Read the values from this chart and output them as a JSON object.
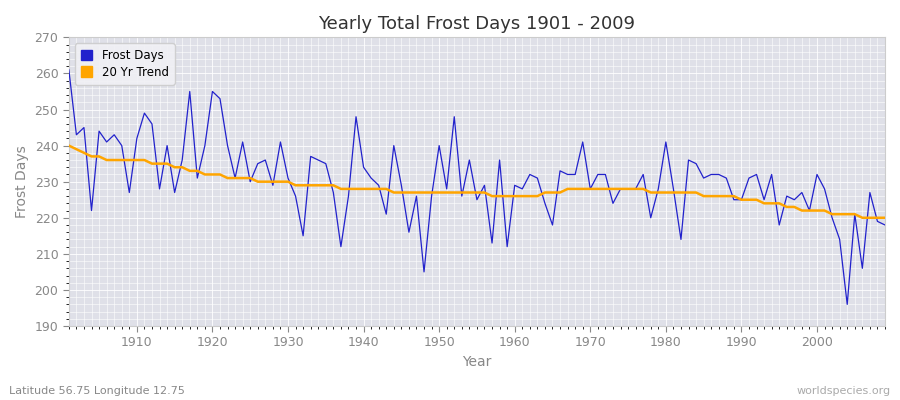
{
  "title": "Yearly Total Frost Days 1901 - 2009",
  "xlabel": "Year",
  "ylabel": "Frost Days",
  "bottom_left_text": "Latitude 56.75 Longitude 12.75",
  "bottom_right_text": "worldspecies.org",
  "ylim": [
    190,
    270
  ],
  "xlim": [
    1901,
    2009
  ],
  "yticks": [
    190,
    200,
    210,
    220,
    230,
    240,
    250,
    260,
    270
  ],
  "xticks": [
    1910,
    1920,
    1930,
    1940,
    1950,
    1960,
    1970,
    1980,
    1990,
    2000
  ],
  "line_color": "#2222cc",
  "trend_color": "#FFA500",
  "plot_bg_color": "#dfe0e8",
  "fig_bg_color": "#ffffff",
  "grid_color": "#ffffff",
  "legend_labels": [
    "Frost Days",
    "20 Yr Trend"
  ],
  "frost_days": {
    "1901": 261,
    "1902": 243,
    "1903": 245,
    "1904": 222,
    "1905": 244,
    "1906": 241,
    "1907": 243,
    "1908": 240,
    "1909": 227,
    "1910": 242,
    "1911": 249,
    "1912": 246,
    "1913": 228,
    "1914": 240,
    "1915": 227,
    "1916": 236,
    "1917": 255,
    "1918": 231,
    "1919": 240,
    "1920": 255,
    "1921": 253,
    "1922": 240,
    "1923": 231,
    "1924": 241,
    "1925": 230,
    "1926": 235,
    "1927": 236,
    "1928": 229,
    "1929": 241,
    "1930": 231,
    "1931": 226,
    "1932": 215,
    "1933": 237,
    "1934": 236,
    "1935": 235,
    "1936": 227,
    "1937": 212,
    "1938": 226,
    "1939": 248,
    "1940": 234,
    "1941": 231,
    "1942": 229,
    "1943": 221,
    "1944": 240,
    "1945": 229,
    "1946": 216,
    "1947": 226,
    "1948": 205,
    "1949": 226,
    "1950": 240,
    "1951": 228,
    "1952": 248,
    "1953": 226,
    "1954": 236,
    "1955": 225,
    "1956": 229,
    "1957": 213,
    "1958": 236,
    "1959": 212,
    "1960": 229,
    "1961": 228,
    "1962": 232,
    "1963": 231,
    "1964": 224,
    "1965": 218,
    "1966": 233,
    "1967": 232,
    "1968": 232,
    "1969": 241,
    "1970": 228,
    "1971": 232,
    "1972": 232,
    "1973": 224,
    "1974": 228,
    "1975": 228,
    "1976": 228,
    "1977": 232,
    "1978": 220,
    "1979": 228,
    "1980": 241,
    "1981": 228,
    "1982": 214,
    "1983": 236,
    "1984": 235,
    "1985": 231,
    "1986": 232,
    "1987": 232,
    "1988": 231,
    "1989": 225,
    "1990": 225,
    "1991": 231,
    "1992": 232,
    "1993": 225,
    "1994": 232,
    "1995": 218,
    "1996": 226,
    "1997": 225,
    "1998": 227,
    "1999": 222,
    "2000": 232,
    "2001": 228,
    "2002": 220,
    "2003": 214,
    "2004": 196,
    "2005": 221,
    "2006": 206,
    "2007": 227,
    "2008": 219,
    "2009": 218
  },
  "trend_days": {
    "1901": 240,
    "1902": 239,
    "1903": 238,
    "1904": 237,
    "1905": 237,
    "1906": 236,
    "1907": 236,
    "1908": 236,
    "1909": 236,
    "1910": 236,
    "1911": 236,
    "1912": 235,
    "1913": 235,
    "1914": 235,
    "1915": 234,
    "1916": 234,
    "1917": 233,
    "1918": 233,
    "1919": 232,
    "1920": 232,
    "1921": 232,
    "1922": 231,
    "1923": 231,
    "1924": 231,
    "1925": 231,
    "1926": 230,
    "1927": 230,
    "1928": 230,
    "1929": 230,
    "1930": 230,
    "1931": 229,
    "1932": 229,
    "1933": 229,
    "1934": 229,
    "1935": 229,
    "1936": 229,
    "1937": 228,
    "1938": 228,
    "1939": 228,
    "1940": 228,
    "1941": 228,
    "1942": 228,
    "1943": 228,
    "1944": 227,
    "1945": 227,
    "1946": 227,
    "1947": 227,
    "1948": 227,
    "1949": 227,
    "1950": 227,
    "1951": 227,
    "1952": 227,
    "1953": 227,
    "1954": 227,
    "1955": 227,
    "1956": 227,
    "1957": 226,
    "1958": 226,
    "1959": 226,
    "1960": 226,
    "1961": 226,
    "1962": 226,
    "1963": 226,
    "1964": 227,
    "1965": 227,
    "1966": 227,
    "1967": 228,
    "1968": 228,
    "1969": 228,
    "1970": 228,
    "1971": 228,
    "1972": 228,
    "1973": 228,
    "1974": 228,
    "1975": 228,
    "1976": 228,
    "1977": 228,
    "1978": 227,
    "1979": 227,
    "1980": 227,
    "1981": 227,
    "1982": 227,
    "1983": 227,
    "1984": 227,
    "1985": 226,
    "1986": 226,
    "1987": 226,
    "1988": 226,
    "1989": 226,
    "1990": 225,
    "1991": 225,
    "1992": 225,
    "1993": 224,
    "1994": 224,
    "1995": 224,
    "1996": 223,
    "1997": 223,
    "1998": 222,
    "1999": 222,
    "2000": 222,
    "2001": 222,
    "2002": 221,
    "2003": 221,
    "2004": 221,
    "2005": 221,
    "2006": 220,
    "2007": 220,
    "2008": 220,
    "2009": 220
  }
}
